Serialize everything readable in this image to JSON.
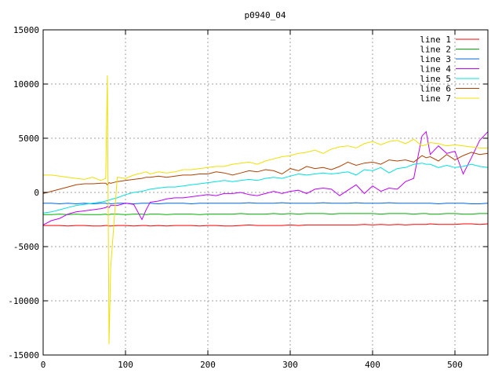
{
  "chart_data": {
    "type": "line",
    "title": "p0940_04",
    "xlabel": "",
    "ylabel": "",
    "xlim": [
      0,
      540
    ],
    "ylim": [
      -15000,
      15000
    ],
    "x_ticks": [
      0,
      100,
      200,
      300,
      400,
      500
    ],
    "y_ticks": [
      -15000,
      -10000,
      -5000,
      0,
      5000,
      10000,
      15000
    ],
    "x_tick_labels": [
      "0",
      "100",
      "200",
      "300",
      "400",
      "500"
    ],
    "y_tick_labels": [
      "-15000",
      "-10000",
      "-5000",
      "0",
      "5000",
      "10000",
      "15000"
    ],
    "grid": true,
    "legend_position": "top-right",
    "x": [
      0,
      10,
      20,
      30,
      40,
      50,
      60,
      70,
      76,
      78,
      80,
      82,
      90,
      100,
      110,
      120,
      125,
      130,
      140,
      150,
      160,
      170,
      180,
      190,
      200,
      210,
      220,
      230,
      240,
      250,
      260,
      270,
      280,
      290,
      300,
      310,
      320,
      330,
      340,
      350,
      360,
      370,
      380,
      390,
      400,
      410,
      420,
      430,
      440,
      450,
      460,
      465,
      470,
      480,
      490,
      500,
      510,
      520,
      530,
      540
    ],
    "series": [
      {
        "name": "line 1",
        "color": "#ff0000",
        "values": [
          -3050,
          -3050,
          -3050,
          -3100,
          -3050,
          -3050,
          -3100,
          -3100,
          -3050,
          -3050,
          -3100,
          -3100,
          -3050,
          -3050,
          -3100,
          -3050,
          -3050,
          -3100,
          -3050,
          -3100,
          -3050,
          -3050,
          -3050,
          -3100,
          -3050,
          -3050,
          -3100,
          -3100,
          -3050,
          -3000,
          -3050,
          -3050,
          -3050,
          -3050,
          -3000,
          -3050,
          -3000,
          -3000,
          -3000,
          -3000,
          -3000,
          -3000,
          -3000,
          -2950,
          -3000,
          -2950,
          -3000,
          -2950,
          -3000,
          -2950,
          -2950,
          -2950,
          -2900,
          -2950,
          -2950,
          -2950,
          -2900,
          -2900,
          -2950,
          -2900
        ]
      },
      {
        "name": "line 2",
        "color": "#00b000",
        "values": [
          -2050,
          -2050,
          -2000,
          -2050,
          -2000,
          -2050,
          -2050,
          -2050,
          -2000,
          -2050,
          -2050,
          -2000,
          -2000,
          -2050,
          -2000,
          -2000,
          -2050,
          -2000,
          -2000,
          -2050,
          -2000,
          -2000,
          -2000,
          -2050,
          -2000,
          -2000,
          -2000,
          -2000,
          -1950,
          -2000,
          -2000,
          -2000,
          -1950,
          -2000,
          -1950,
          -2000,
          -1950,
          -1950,
          -1950,
          -2000,
          -1950,
          -1950,
          -1950,
          -1950,
          -1950,
          -2000,
          -1950,
          -1950,
          -1950,
          -2000,
          -1950,
          -1950,
          -2000,
          -2000,
          -1950,
          -1950,
          -2000,
          -2000,
          -1950,
          -1950
        ]
      },
      {
        "name": "line 3",
        "color": "#0066dd",
        "values": [
          -1000,
          -1000,
          -1050,
          -1000,
          -1050,
          -1000,
          -1050,
          -1000,
          -1000,
          -1050,
          -1000,
          -1050,
          -1000,
          -1000,
          -1050,
          -1000,
          -1000,
          -1000,
          -1050,
          -1000,
          -1000,
          -1000,
          -1050,
          -1000,
          -1000,
          -1000,
          -1000,
          -1000,
          -1000,
          -950,
          -1000,
          -1000,
          -1000,
          -950,
          -1000,
          -1000,
          -1000,
          -1000,
          -950,
          -1000,
          -1000,
          -1000,
          -950,
          -1000,
          -1000,
          -1000,
          -950,
          -1000,
          -1000,
          -1000,
          -1000,
          -1000,
          -1000,
          -1050,
          -1000,
          -1000,
          -1000,
          -1050,
          -1050,
          -1000
        ]
      },
      {
        "name": "line 4",
        "color": "#c000ff",
        "values": [
          -3000,
          -2600,
          -2400,
          -2000,
          -1800,
          -1700,
          -1600,
          -1500,
          -1400,
          -1300,
          -1400,
          -1200,
          -1200,
          -1000,
          -1100,
          -2500,
          -1600,
          -900,
          -800,
          -600,
          -500,
          -500,
          -400,
          -300,
          -200,
          -300,
          -100,
          -100,
          0,
          -200,
          -300,
          -100,
          100,
          -100,
          100,
          200,
          -100,
          300,
          400,
          300,
          -300,
          200,
          700,
          -100,
          600,
          100,
          400,
          300,
          1000,
          1300,
          5200,
          5600,
          3500,
          4300,
          3600,
          3800,
          1700,
          3200,
          4800,
          5600
        ]
      },
      {
        "name": "line 5",
        "color": "#00e0e0",
        "values": [
          -1900,
          -1800,
          -1600,
          -1400,
          -1200,
          -1100,
          -1000,
          -900,
          -800,
          -750,
          -700,
          -650,
          -500,
          -200,
          0,
          100,
          200,
          300,
          400,
          500,
          500,
          600,
          700,
          800,
          900,
          1000,
          1100,
          1000,
          1100,
          1200,
          1100,
          1300,
          1400,
          1300,
          1500,
          1700,
          1600,
          1700,
          1800,
          1700,
          1800,
          1900,
          1600,
          2100,
          2000,
          2300,
          1800,
          2200,
          2300,
          2600,
          2700,
          2600,
          2600,
          2300,
          2500,
          2300,
          2400,
          2600,
          2400,
          2300
        ]
      },
      {
        "name": "line 6",
        "color": "#b04000",
        "values": [
          -100,
          100,
          300,
          500,
          700,
          800,
          800,
          850,
          850,
          700,
          900,
          850,
          1000,
          1100,
          1200,
          1300,
          1400,
          1400,
          1500,
          1400,
          1500,
          1600,
          1600,
          1700,
          1700,
          1900,
          1800,
          1600,
          1800,
          2000,
          1900,
          2100,
          2000,
          1700,
          2200,
          2000,
          2400,
          2200,
          2300,
          2100,
          2400,
          2800,
          2500,
          2700,
          2800,
          2600,
          3000,
          2900,
          3000,
          2800,
          3400,
          3200,
          3300,
          2900,
          3500,
          3000,
          3400,
          3700,
          3500,
          3600
        ]
      },
      {
        "name": "line 7",
        "color": "#f0e000",
        "values": [
          1600,
          1600,
          1500,
          1400,
          1300,
          1200,
          1400,
          1100,
          1300,
          10800,
          -14000,
          -7000,
          1400,
          1300,
          1600,
          1800,
          1900,
          1700,
          1900,
          1800,
          1900,
          2100,
          2100,
          2200,
          2300,
          2400,
          2400,
          2600,
          2700,
          2800,
          2600,
          2900,
          3100,
          3300,
          3400,
          3600,
          3700,
          3900,
          3600,
          4000,
          4200,
          4300,
          4100,
          4500,
          4700,
          4400,
          4700,
          4800,
          4500,
          4900,
          4300,
          4400,
          4600,
          4500,
          4300,
          4400,
          4300,
          4200,
          4100,
          4100
        ]
      }
    ]
  }
}
